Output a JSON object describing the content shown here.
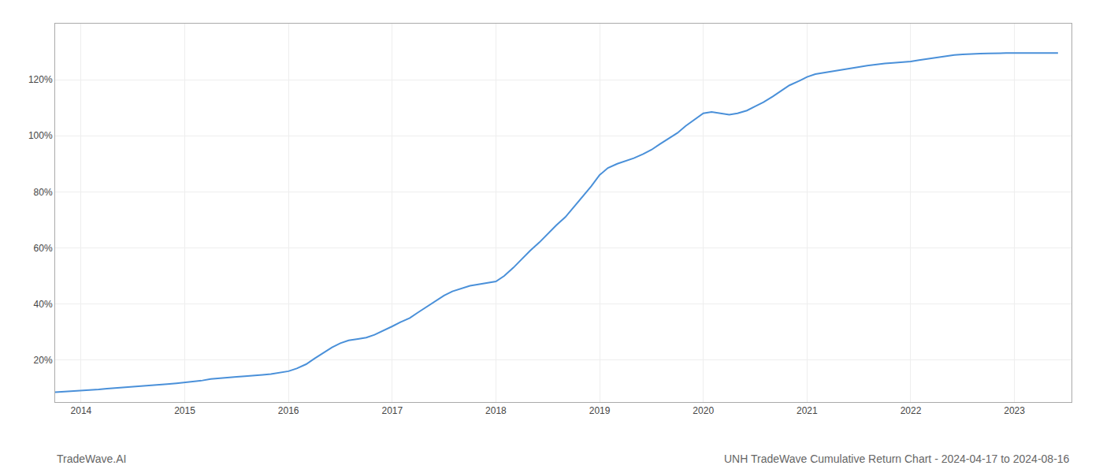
{
  "chart_data": {
    "type": "line",
    "title": "UNH TradeWave Cumulative Return Chart - 2024-04-17 to 2024-08-16",
    "annotations": [
      "TradeWave.AI"
    ],
    "color": "#4a90d9",
    "grid": true,
    "x": [
      2013.75,
      2014.0,
      2014.08,
      2014.17,
      2014.25,
      2014.33,
      2014.42,
      2014.5,
      2014.58,
      2014.67,
      2014.75,
      2014.83,
      2014.92,
      2015.0,
      2015.08,
      2015.17,
      2015.25,
      2015.33,
      2015.42,
      2015.5,
      2015.58,
      2015.67,
      2015.75,
      2015.83,
      2015.92,
      2016.0,
      2016.08,
      2016.17,
      2016.25,
      2016.33,
      2016.42,
      2016.5,
      2016.58,
      2016.67,
      2016.75,
      2016.83,
      2016.92,
      2017.0,
      2017.08,
      2017.17,
      2017.25,
      2017.33,
      2017.42,
      2017.5,
      2017.58,
      2017.67,
      2017.75,
      2017.83,
      2017.92,
      2018.0,
      2018.08,
      2018.17,
      2018.25,
      2018.33,
      2018.42,
      2018.5,
      2018.58,
      2018.67,
      2018.75,
      2018.83,
      2018.92,
      2019.0,
      2019.08,
      2019.17,
      2019.25,
      2019.33,
      2019.42,
      2019.5,
      2019.58,
      2019.67,
      2019.75,
      2019.83,
      2019.92,
      2020.0,
      2020.08,
      2020.17,
      2020.25,
      2020.33,
      2020.42,
      2020.5,
      2020.58,
      2020.67,
      2020.75,
      2020.83,
      2020.92,
      2021.0,
      2021.08,
      2021.17,
      2021.25,
      2021.33,
      2021.42,
      2021.5,
      2021.58,
      2021.67,
      2021.75,
      2021.83,
      2021.92,
      2022.0,
      2022.08,
      2022.17,
      2022.25,
      2022.33,
      2022.42,
      2022.5,
      2022.58,
      2022.67,
      2022.75,
      2022.83,
      2022.92,
      2023.0,
      2023.08,
      2023.17,
      2023.25,
      2023.33,
      2023.42
    ],
    "values": [
      8.5,
      9.0,
      9.2,
      9.5,
      9.8,
      10.0,
      10.3,
      10.5,
      10.8,
      11.0,
      11.2,
      11.4,
      11.7,
      12.0,
      12.3,
      12.7,
      13.2,
      13.5,
      13.8,
      14.0,
      14.2,
      14.4,
      14.7,
      15.0,
      15.5,
      16.0,
      17.0,
      18.5,
      20.5,
      22.5,
      24.5,
      26.0,
      27.0,
      27.5,
      28.0,
      29.0,
      30.5,
      32.0,
      33.5,
      35.0,
      37.0,
      39.0,
      41.0,
      43.0,
      44.5,
      45.5,
      46.5,
      47.0,
      47.5,
      48.0,
      50.0,
      53.0,
      56.0,
      59.0,
      62.0,
      65.0,
      68.0,
      71.0,
      74.5,
      78.0,
      82.0,
      86.0,
      88.5,
      90.0,
      91.0,
      92.0,
      93.5,
      95.0,
      97.0,
      99.0,
      101.0,
      103.5,
      106.0,
      108.0,
      108.5,
      108.0,
      107.5,
      108.0,
      109.0,
      110.5,
      112.0,
      114.0,
      116.0,
      118.0,
      119.5,
      121.0,
      122.0,
      122.5,
      123.0,
      123.5,
      124.0,
      124.5,
      125.0,
      125.5,
      125.8,
      126.0,
      126.2,
      126.5,
      127.0,
      127.5,
      128.0,
      128.5,
      128.8,
      129.0,
      129.2,
      129.3,
      129.4,
      129.5,
      129.5,
      129.5,
      129.5,
      129.5,
      129.5,
      129.5,
      129.5
    ],
    "xlim": [
      2013.75,
      2023.55
    ],
    "xticks": [
      2014,
      2015,
      2016,
      2017,
      2018,
      2019,
      2020,
      2021,
      2022,
      2023
    ],
    "ylim": [
      5,
      140
    ],
    "yticks": [
      {
        "value": 20,
        "label": "20%"
      },
      {
        "value": 40,
        "label": "40%"
      },
      {
        "value": 60,
        "label": "60%"
      },
      {
        "value": 80,
        "label": "80%"
      },
      {
        "value": 100,
        "label": "100%"
      },
      {
        "value": 120,
        "label": "120%"
      }
    ]
  }
}
